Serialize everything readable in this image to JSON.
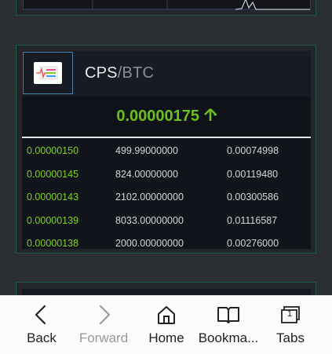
{
  "pair": {
    "base": "CPS",
    "separator": "/",
    "quote": "BTC"
  },
  "last_price": {
    "value": "0.00000175",
    "direction_icon": "arrow-up-icon"
  },
  "order_book": [
    {
      "price": "0.00000150",
      "amount": "499.99000000",
      "total": "0.00074998"
    },
    {
      "price": "0.00000145",
      "amount": "824.00000000",
      "total": "0.00119480"
    },
    {
      "price": "0.00000143",
      "amount": "2102.00000000",
      "total": "0.00300586"
    },
    {
      "price": "0.00000139",
      "amount": "8033.00000000",
      "total": "0.01116587"
    },
    {
      "price": "0.00000138",
      "amount": "2000.00000000",
      "total": "0.00276000"
    }
  ],
  "bottom_nav": {
    "back": "Back",
    "forward": "Forward",
    "home": "Home",
    "bookmarks": "Bookma...",
    "tabs": "Tabs",
    "tabs_count": "1"
  },
  "colors": {
    "price_green": "#7fd321",
    "card_border": "#1f5a45",
    "logo_border": "#4f80a8"
  }
}
